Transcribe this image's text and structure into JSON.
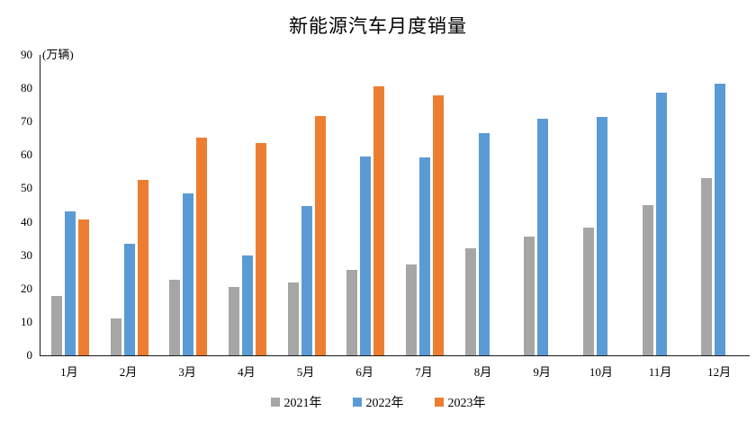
{
  "chart_data": {
    "type": "bar",
    "title": "新能源汽车月度销量",
    "unit_label": "(万辆)",
    "categories": [
      "1月",
      "2月",
      "3月",
      "4月",
      "5月",
      "6月",
      "7月",
      "8月",
      "9月",
      "10月",
      "11月",
      "12月"
    ],
    "series": [
      {
        "name": "2021年",
        "color": "#A6A6A6",
        "values": [
          17.9,
          11.0,
          22.6,
          20.6,
          21.7,
          25.6,
          27.1,
          32.1,
          35.7,
          38.3,
          45.0,
          53.1
        ]
      },
      {
        "name": "2022年",
        "color": "#5B9BD5",
        "values": [
          43.1,
          33.4,
          48.4,
          29.9,
          44.7,
          59.6,
          59.3,
          66.6,
          70.8,
          71.4,
          78.6,
          81.4
        ]
      },
      {
        "name": "2023年",
        "color": "#ED7D31",
        "values": [
          40.8,
          52.5,
          65.3,
          63.6,
          71.7,
          80.6,
          78.0,
          null,
          null,
          null,
          null,
          null
        ]
      }
    ],
    "ylim": [
      0,
      90
    ],
    "y_ticks": [
      0,
      10,
      20,
      30,
      40,
      50,
      60,
      70,
      80,
      90
    ],
    "grid": false,
    "legend_position": "bottom",
    "axis_color": "#1a1a1a"
  }
}
